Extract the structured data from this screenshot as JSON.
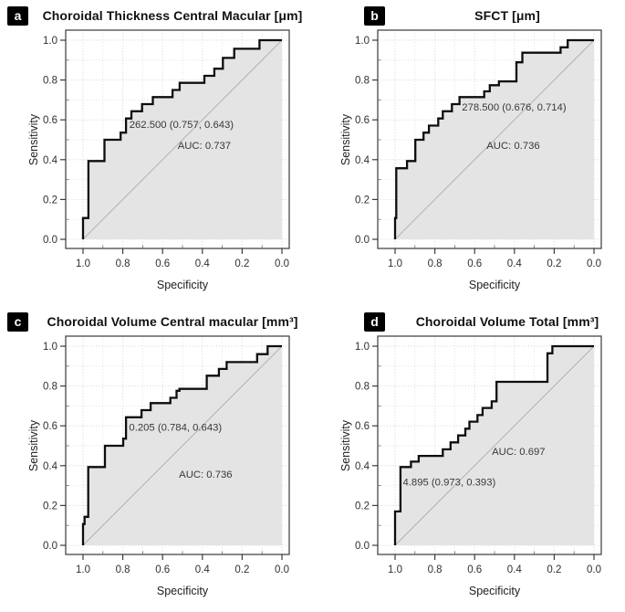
{
  "figure": {
    "description": "Four ROC curve panels (a-d) plotting Sensitivity against Specificity with reversed x axis, shaded area under each curve, dotted gridlines, diagonal reference line, optimal cutpoint annotation and AUC value"
  },
  "style": {
    "curve_color": "#0d0d0d",
    "fill_color": "#e4e4e4",
    "frame_color": "#474747",
    "grid_major_color": "#d2d2d2",
    "grid_minor_color": "#e0e0e0",
    "diagonal_color": "#b3b3b3",
    "tick_color": "#3c3c3c",
    "tick_text_color": "#303030",
    "axis_label_color": "#202020",
    "annotation_color": "#383838",
    "badge_bg": "#000000",
    "badge_text": "#ffffff"
  },
  "chart_data": [
    {
      "panel_tag": "a",
      "type": "line",
      "subtype": "roc-step",
      "title": "Choroidal Thickness Central Macular [μm]",
      "xlabel": "Specificity",
      "ylabel": "Sensitivity",
      "x_axis_reversed": true,
      "xlim": [
        1.0,
        0.0
      ],
      "ylim": [
        0.0,
        1.0
      ],
      "x_ticks": [
        "1.0",
        "0.8",
        "0.6",
        "0.4",
        "0.2",
        "0.0"
      ],
      "y_ticks": [
        "0.0",
        "0.2",
        "0.4",
        "0.6",
        "0.8",
        "1.0"
      ],
      "grid": "dotted every 0.1",
      "legend": "none",
      "auc": 0.737,
      "cutpoint": {
        "threshold": "262.500",
        "specificity": 0.757,
        "sensitivity": 0.643
      },
      "annotations": [
        {
          "text": "262.500 (0.757, 0.643)",
          "fx": 0.518,
          "fy": 0.431
        },
        {
          "text": "AUC: 0.737",
          "fx": 0.62,
          "fy": 0.527
        }
      ],
      "roc_points": [
        [
          1.0,
          0.0
        ],
        [
          1.0,
          0.107
        ],
        [
          0.973,
          0.107
        ],
        [
          0.973,
          0.393
        ],
        [
          0.892,
          0.393
        ],
        [
          0.892,
          0.5
        ],
        [
          0.811,
          0.5
        ],
        [
          0.811,
          0.536
        ],
        [
          0.784,
          0.536
        ],
        [
          0.784,
          0.607
        ],
        [
          0.757,
          0.607
        ],
        [
          0.757,
          0.643
        ],
        [
          0.703,
          0.643
        ],
        [
          0.703,
          0.679
        ],
        [
          0.649,
          0.679
        ],
        [
          0.649,
          0.714
        ],
        [
          0.55,
          0.714
        ],
        [
          0.55,
          0.75
        ],
        [
          0.514,
          0.75
        ],
        [
          0.514,
          0.786
        ],
        [
          0.39,
          0.786
        ],
        [
          0.39,
          0.821
        ],
        [
          0.34,
          0.821
        ],
        [
          0.34,
          0.857
        ],
        [
          0.297,
          0.857
        ],
        [
          0.297,
          0.911
        ],
        [
          0.24,
          0.911
        ],
        [
          0.24,
          0.957
        ],
        [
          0.113,
          0.957
        ],
        [
          0.113,
          1.0
        ],
        [
          0.0,
          1.0
        ]
      ]
    },
    {
      "panel_tag": "b",
      "type": "line",
      "subtype": "roc-step",
      "title": "SFCT [μm]",
      "xlabel": "Specificity",
      "ylabel": "Sensitivity",
      "x_axis_reversed": true,
      "xlim": [
        1.0,
        0.0
      ],
      "ylim": [
        0.0,
        1.0
      ],
      "x_ticks": [
        "1.0",
        "0.8",
        "0.6",
        "0.4",
        "0.2",
        "0.0"
      ],
      "y_ticks": [
        "0.0",
        "0.2",
        "0.4",
        "0.6",
        "0.8",
        "1.0"
      ],
      "grid": "dotted every 0.1",
      "legend": "none",
      "auc": 0.736,
      "cutpoint": {
        "threshold": "278.500",
        "specificity": 0.676,
        "sensitivity": 0.714
      },
      "annotations": [
        {
          "text": "278.500 (0.676, 0.714)",
          "fx": 0.61,
          "fy": 0.351
        },
        {
          "text": "AUC: 0.736",
          "fx": 0.606,
          "fy": 0.527
        }
      ],
      "roc_points": [
        [
          1.0,
          0.0
        ],
        [
          1.0,
          0.107
        ],
        [
          0.994,
          0.107
        ],
        [
          0.994,
          0.357
        ],
        [
          0.94,
          0.357
        ],
        [
          0.94,
          0.393
        ],
        [
          0.898,
          0.393
        ],
        [
          0.898,
          0.5
        ],
        [
          0.857,
          0.5
        ],
        [
          0.857,
          0.536
        ],
        [
          0.83,
          0.536
        ],
        [
          0.83,
          0.571
        ],
        [
          0.783,
          0.571
        ],
        [
          0.783,
          0.607
        ],
        [
          0.76,
          0.607
        ],
        [
          0.76,
          0.643
        ],
        [
          0.714,
          0.643
        ],
        [
          0.714,
          0.679
        ],
        [
          0.676,
          0.679
        ],
        [
          0.676,
          0.714
        ],
        [
          0.552,
          0.714
        ],
        [
          0.552,
          0.743
        ],
        [
          0.524,
          0.743
        ],
        [
          0.524,
          0.774
        ],
        [
          0.478,
          0.774
        ],
        [
          0.478,
          0.793
        ],
        [
          0.39,
          0.793
        ],
        [
          0.39,
          0.889
        ],
        [
          0.36,
          0.889
        ],
        [
          0.36,
          0.937
        ],
        [
          0.168,
          0.937
        ],
        [
          0.168,
          0.964
        ],
        [
          0.132,
          0.964
        ],
        [
          0.132,
          1.0
        ],
        [
          0.0,
          1.0
        ]
      ]
    },
    {
      "panel_tag": "c",
      "type": "line",
      "subtype": "roc-step",
      "title": "Choroidal Volume Central macular [mm³]",
      "xlabel": "Specificity",
      "ylabel": "Sensitivity",
      "x_axis_reversed": true,
      "xlim": [
        1.0,
        0.0
      ],
      "ylim": [
        0.0,
        1.0
      ],
      "x_ticks": [
        "1.0",
        "0.8",
        "0.6",
        "0.4",
        "0.2",
        "0.0"
      ],
      "y_ticks": [
        "0.0",
        "0.2",
        "0.4",
        "0.6",
        "0.8",
        "1.0"
      ],
      "grid": "dotted every 0.1",
      "legend": "none",
      "auc": 0.736,
      "cutpoint": {
        "threshold": "0.205",
        "specificity": 0.784,
        "sensitivity": 0.643
      },
      "annotations": [
        {
          "text": "0.205 (0.784, 0.643)",
          "fx": 0.491,
          "fy": 0.416
        },
        {
          "text": "AUC: 0.736",
          "fx": 0.626,
          "fy": 0.632
        }
      ],
      "roc_points": [
        [
          1.0,
          0.0
        ],
        [
          1.0,
          0.107
        ],
        [
          0.992,
          0.107
        ],
        [
          0.992,
          0.143
        ],
        [
          0.974,
          0.143
        ],
        [
          0.974,
          0.393
        ],
        [
          0.89,
          0.393
        ],
        [
          0.89,
          0.5
        ],
        [
          0.798,
          0.5
        ],
        [
          0.798,
          0.536
        ],
        [
          0.784,
          0.536
        ],
        [
          0.784,
          0.643
        ],
        [
          0.706,
          0.643
        ],
        [
          0.706,
          0.679
        ],
        [
          0.66,
          0.679
        ],
        [
          0.66,
          0.714
        ],
        [
          0.561,
          0.714
        ],
        [
          0.561,
          0.741
        ],
        [
          0.53,
          0.741
        ],
        [
          0.53,
          0.776
        ],
        [
          0.515,
          0.776
        ],
        [
          0.515,
          0.786
        ],
        [
          0.378,
          0.786
        ],
        [
          0.378,
          0.852
        ],
        [
          0.317,
          0.852
        ],
        [
          0.317,
          0.886
        ],
        [
          0.278,
          0.886
        ],
        [
          0.278,
          0.92
        ],
        [
          0.125,
          0.92
        ],
        [
          0.125,
          0.96
        ],
        [
          0.072,
          0.96
        ],
        [
          0.072,
          1.0
        ],
        [
          0.0,
          1.0
        ]
      ]
    },
    {
      "panel_tag": "d",
      "type": "line",
      "subtype": "roc-step",
      "title": "Choroidal Volume Total [mm³]",
      "xlabel": "Specificity",
      "ylabel": "Sensitivity",
      "x_axis_reversed": true,
      "xlim": [
        1.0,
        0.0
      ],
      "ylim": [
        0.0,
        1.0
      ],
      "x_ticks": [
        "1.0",
        "0.8",
        "0.6",
        "0.4",
        "0.2",
        "0.0"
      ],
      "y_ticks": [
        "0.0",
        "0.2",
        "0.4",
        "0.6",
        "0.8",
        "1.0"
      ],
      "grid": "dotted every 0.1",
      "legend": "none",
      "auc": 0.697,
      "cutpoint": {
        "threshold": "4.895",
        "specificity": 0.973,
        "sensitivity": 0.393
      },
      "annotations": [
        {
          "text": "AUC: 0.697",
          "fx": 0.63,
          "fy": 0.527
        },
        {
          "text": "4.895 (0.973, 0.393)",
          "fx": 0.32,
          "fy": 0.668
        }
      ],
      "roc_points": [
        [
          1.0,
          0.0
        ],
        [
          1.0,
          0.17
        ],
        [
          0.973,
          0.17
        ],
        [
          0.973,
          0.393
        ],
        [
          0.92,
          0.393
        ],
        [
          0.92,
          0.42
        ],
        [
          0.881,
          0.42
        ],
        [
          0.881,
          0.449
        ],
        [
          0.76,
          0.449
        ],
        [
          0.76,
          0.482
        ],
        [
          0.721,
          0.482
        ],
        [
          0.721,
          0.517
        ],
        [
          0.683,
          0.517
        ],
        [
          0.683,
          0.552
        ],
        [
          0.647,
          0.552
        ],
        [
          0.647,
          0.586
        ],
        [
          0.626,
          0.586
        ],
        [
          0.626,
          0.621
        ],
        [
          0.586,
          0.621
        ],
        [
          0.586,
          0.654
        ],
        [
          0.56,
          0.654
        ],
        [
          0.56,
          0.69
        ],
        [
          0.514,
          0.69
        ],
        [
          0.514,
          0.723
        ],
        [
          0.49,
          0.723
        ],
        [
          0.49,
          0.821
        ],
        [
          0.234,
          0.821
        ],
        [
          0.234,
          0.964
        ],
        [
          0.209,
          0.964
        ],
        [
          0.209,
          1.0
        ],
        [
          0.0,
          1.0
        ]
      ]
    }
  ]
}
